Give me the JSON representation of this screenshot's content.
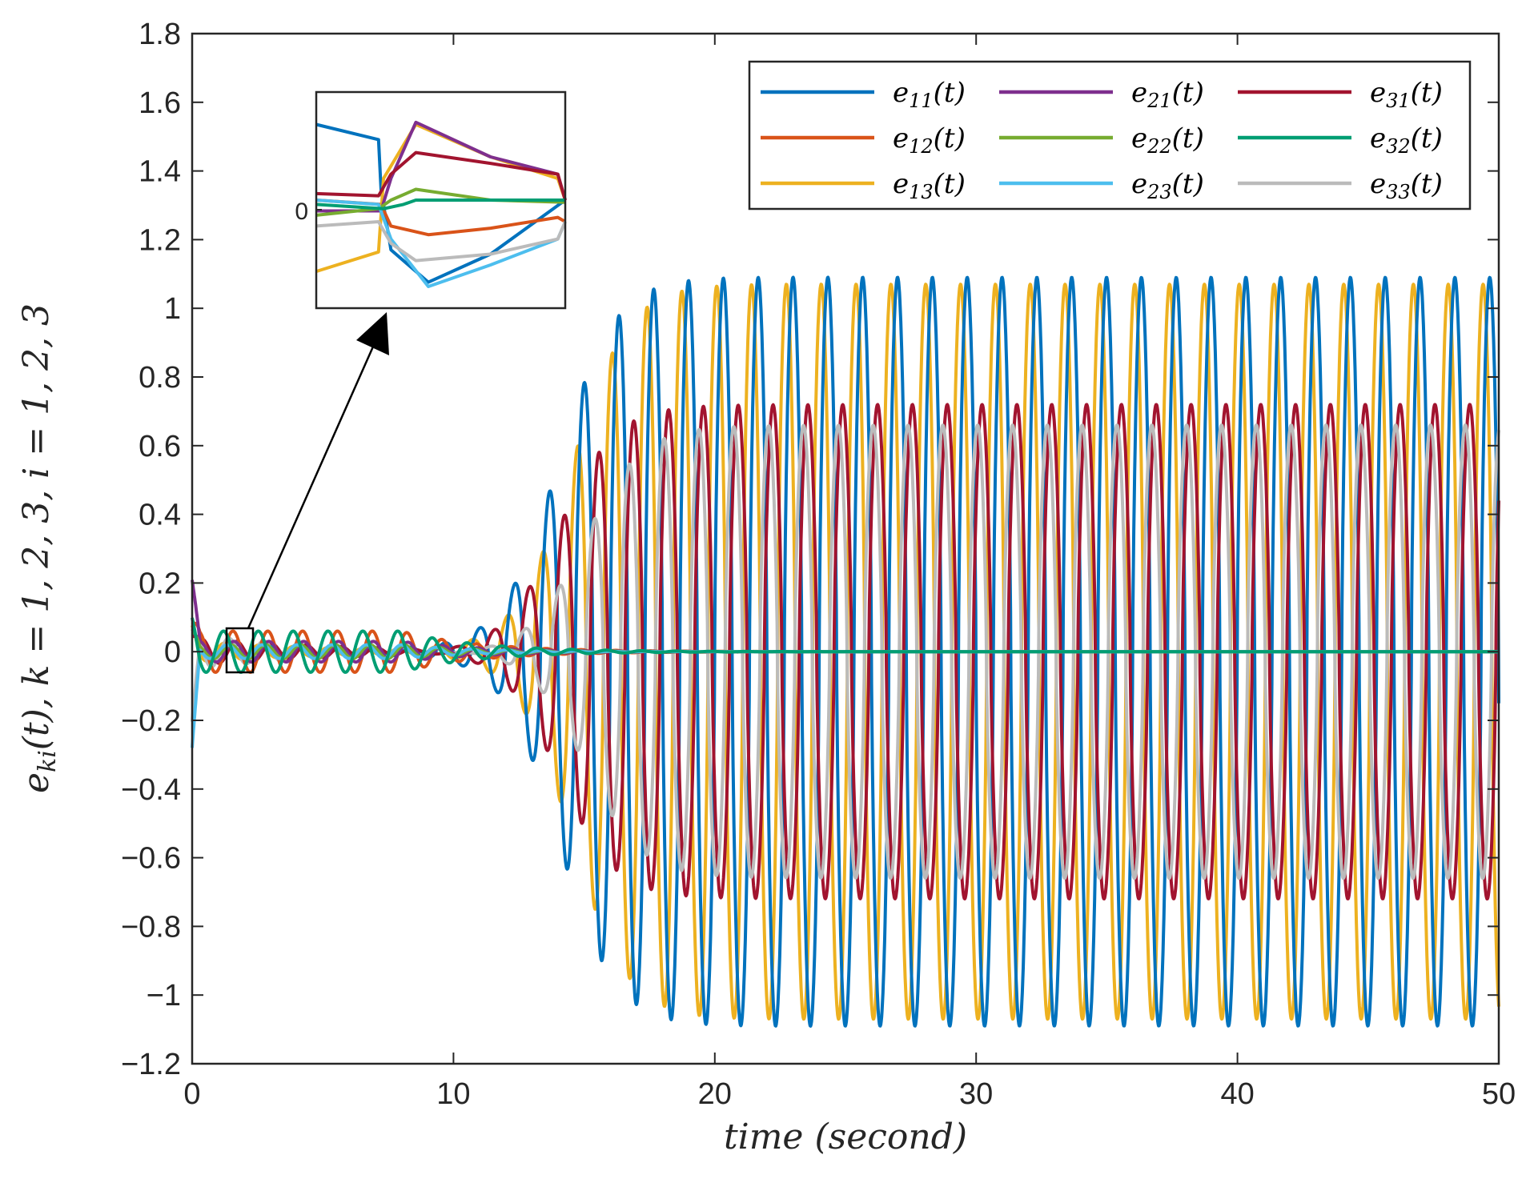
{
  "chart_data": {
    "type": "line",
    "title": "",
    "xlabel": "time (second)",
    "ylabel": "e_ki(t), k = 1, 2, 3, i = 1, 2, 3",
    "xlim": [
      0,
      50
    ],
    "ylim": [
      -1.2,
      1.8
    ],
    "xticks": [
      0,
      10,
      20,
      30,
      40,
      50
    ],
    "xtick_labels": [
      "0",
      "10",
      "20",
      "30",
      "40",
      "50"
    ],
    "yticks": [
      -1.2,
      -1,
      -0.8,
      -0.6,
      -0.4,
      -0.2,
      0,
      0.2,
      0.4,
      0.6,
      0.8,
      1,
      1.2,
      1.4,
      1.6,
      1.8
    ],
    "ytick_labels": [
      "−1.2",
      "−1",
      "−0.8",
      "−0.6",
      "−0.4",
      "−0.2",
      "0",
      "0.2",
      "0.4",
      "0.6",
      "0.8",
      "1",
      "1.2",
      "1.4",
      "1.6",
      "1.8"
    ],
    "grid": false,
    "legend_position": "top-right",
    "oscillation_period": 1.333,
    "series": [
      {
        "name": "e11(t)",
        "base": "e",
        "sub": "11",
        "color": "#0072BD",
        "amplitude": 1.09,
        "phase": 0.0,
        "growth_center": 14,
        "growth_rate": 0.42,
        "early_amp": 0.03,
        "offset": 0
      },
      {
        "name": "e12(t)",
        "base": "e",
        "sub": "12",
        "color": "#D95319",
        "amplitude": 0.0,
        "phase": 0.5,
        "growth_center": 14,
        "growth_rate": 0.42,
        "early_amp": 0.06,
        "offset": 0
      },
      {
        "name": "e13(t)",
        "base": "e",
        "sub": "13",
        "color": "#EDB120",
        "amplitude": 1.07,
        "phase": 1.2,
        "growth_center": 14.5,
        "growth_rate": 0.42,
        "early_amp": 0.03,
        "offset": 0
      },
      {
        "name": "e21(t)",
        "base": "e",
        "sub": "21",
        "color": "#7E2F8E",
        "amplitude": 0.0,
        "phase": 0.3,
        "growth_center": 14,
        "growth_rate": 0.42,
        "early_amp": 0.03,
        "offset": 0
      },
      {
        "name": "e22(t)",
        "base": "e",
        "sub": "22",
        "color": "#77AC30",
        "amplitude": 0.0,
        "phase": 0.9,
        "growth_center": 14,
        "growth_rate": 0.42,
        "early_amp": 0.02,
        "offset": 0
      },
      {
        "name": "e23(t)",
        "base": "e",
        "sub": "23",
        "color": "#4DBEEE",
        "amplitude": 0.0,
        "phase": 1.5,
        "growth_center": 14,
        "growth_rate": 0.42,
        "early_amp": 0.02,
        "offset": 0
      },
      {
        "name": "e31(t)",
        "base": "e",
        "sub": "31",
        "color": "#A2142F",
        "amplitude": 0.72,
        "phase": 3.6,
        "growth_center": 14,
        "growth_rate": 0.42,
        "early_amp": 0.04,
        "offset": 0
      },
      {
        "name": "e32(t)",
        "base": "e",
        "sub": "32",
        "color": "#009E73",
        "amplitude": 0.0,
        "phase": 2.2,
        "growth_center": 14,
        "growth_rate": 0.42,
        "early_amp": 0.06,
        "offset": 0
      },
      {
        "name": "e33(t)",
        "base": "e",
        "sub": "33",
        "color": "#BBBBBB",
        "amplitude": 0.66,
        "phase": 4.4,
        "growth_center": 15,
        "growth_rate": 0.42,
        "early_amp": 0.05,
        "offset": 0
      }
    ],
    "inset": {
      "zoom_xlim": [
        1.3,
        2.3
      ],
      "zoom_ylim": [
        -0.06,
        0.06
      ],
      "ytick_label": "0"
    }
  }
}
